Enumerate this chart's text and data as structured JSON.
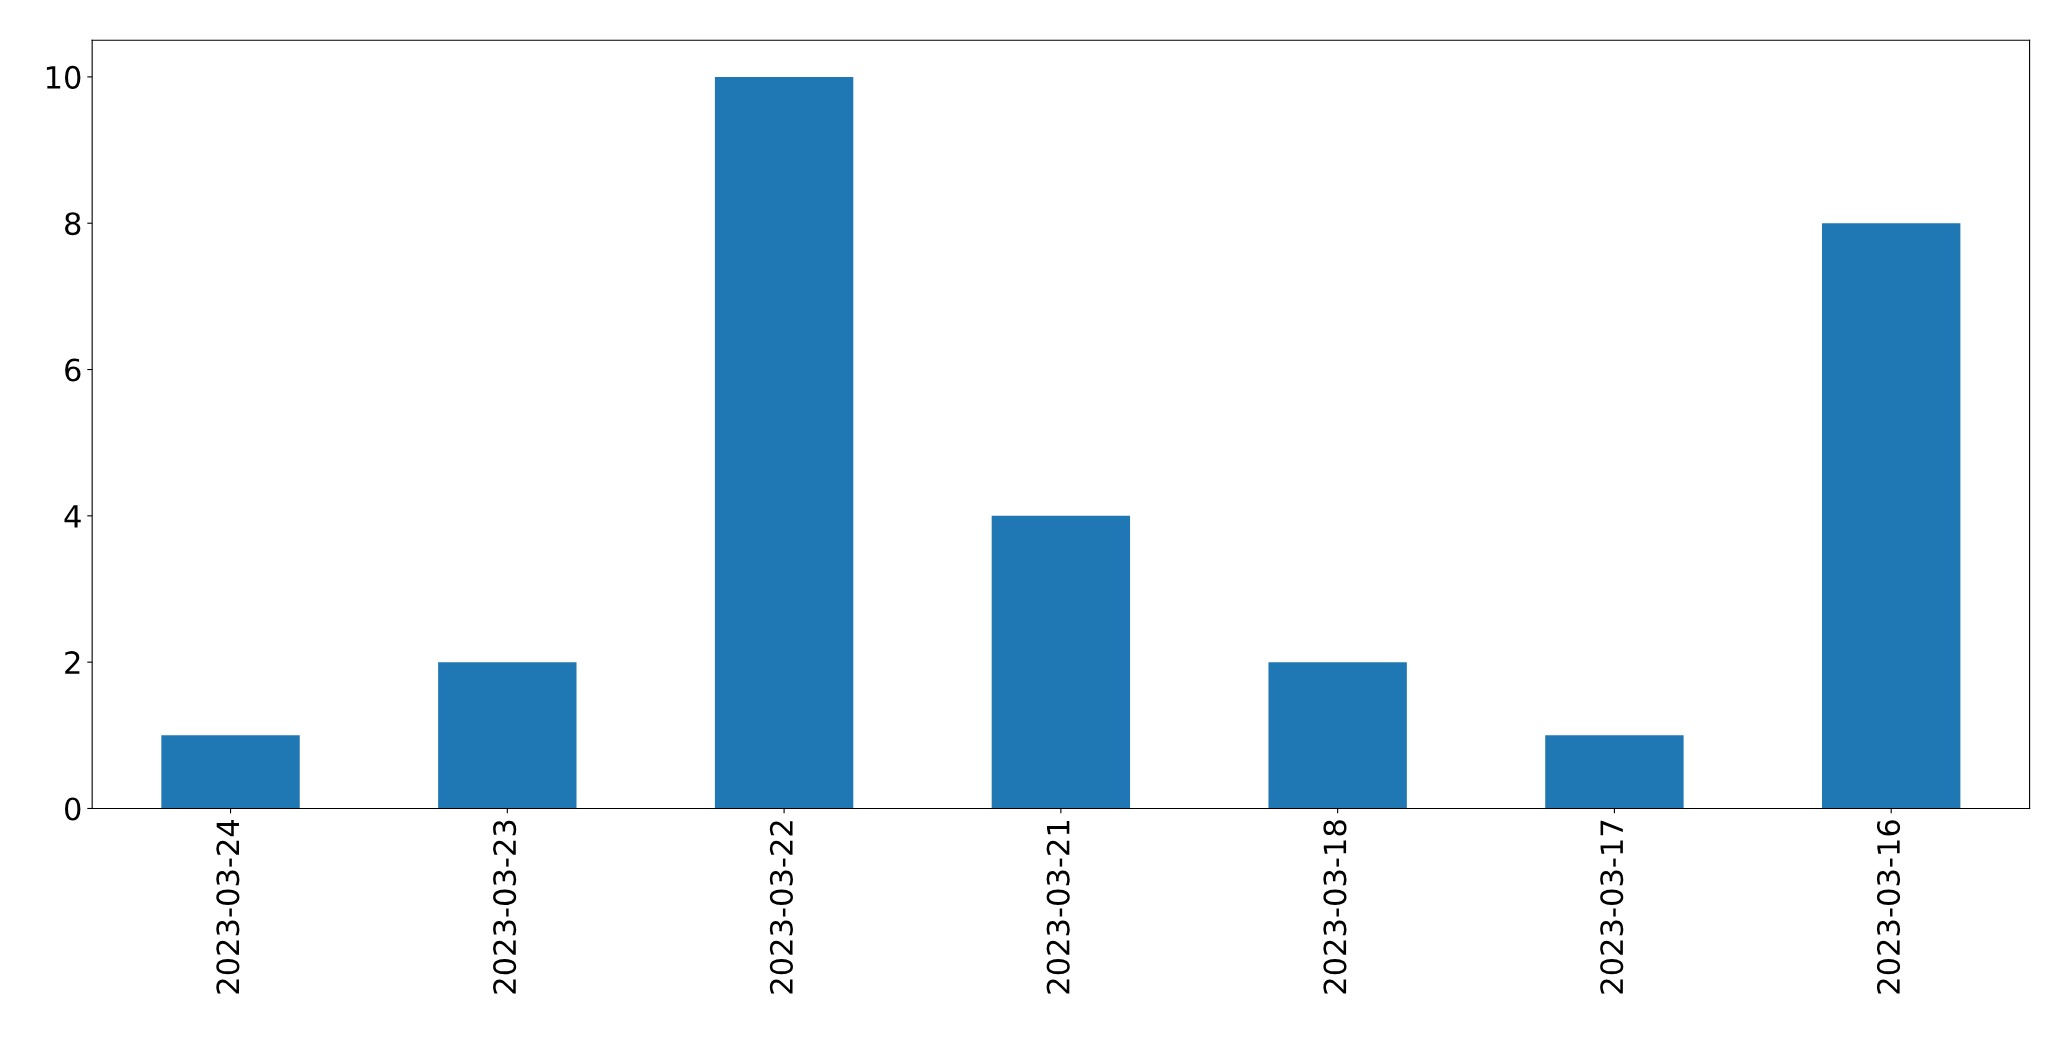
{
  "chart_data": {
    "type": "bar",
    "categories": [
      "2023-03-24",
      "2023-03-23",
      "2023-03-22",
      "2023-03-21",
      "2023-03-18",
      "2023-03-17",
      "2023-03-16"
    ],
    "values": [
      1,
      2,
      10,
      4,
      2,
      1,
      8
    ],
    "color": "#1f77b4",
    "ylim": [
      0,
      10.5
    ],
    "yticks": [
      0,
      2,
      4,
      6,
      8,
      10
    ],
    "grid": false,
    "legend": false
  }
}
